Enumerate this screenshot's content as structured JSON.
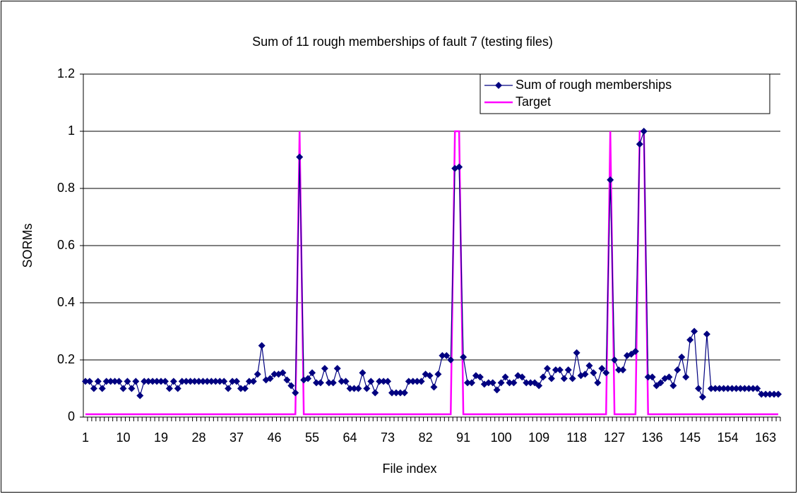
{
  "chart_data": {
    "type": "line",
    "title": "Sum of 11 rough memberships of fault 7 (testing files)",
    "xlabel": "File index",
    "ylabel": "SORMs",
    "categories": [
      1,
      null,
      null,
      null,
      null,
      null,
      null,
      null,
      null,
      10,
      null,
      null,
      null,
      null,
      null,
      null,
      null,
      null,
      19,
      null,
      null,
      null,
      null,
      null,
      null,
      null,
      null,
      28,
      null,
      null,
      null,
      null,
      null,
      null,
      null,
      null,
      37,
      null,
      null,
      null,
      null,
      null,
      null,
      null,
      null,
      46,
      null,
      null,
      null,
      null,
      null,
      null,
      null,
      null,
      55,
      null,
      null,
      null,
      null,
      null,
      null,
      null,
      null,
      64,
      null,
      null,
      null,
      null,
      null,
      null,
      null,
      null,
      73,
      null,
      null,
      null,
      null,
      null,
      null,
      null,
      null,
      82,
      null,
      null,
      null,
      null,
      null,
      null,
      null,
      null,
      91,
      null,
      null,
      null,
      null,
      null,
      null,
      null,
      null,
      100,
      null,
      null,
      null,
      null,
      null,
      null,
      null,
      null,
      109,
      null,
      null,
      null,
      null,
      null,
      null,
      null,
      null,
      118,
      null,
      null,
      null,
      null,
      null,
      null,
      null,
      null,
      127,
      null,
      null,
      null,
      null,
      null,
      null,
      null,
      null,
      136,
      null,
      null,
      null,
      null,
      null,
      null,
      null,
      null,
      145,
      null,
      null,
      null,
      null,
      null,
      null,
      null,
      null,
      154,
      null,
      null,
      null,
      null,
      null,
      null,
      null,
      null,
      163,
      null,
      null,
      null
    ],
    "series": [
      {
        "name": "Sum of rough memberships",
        "color": "#000080",
        "marker": "diamond",
        "values": [
          0.125,
          0.125,
          0.1,
          0.125,
          0.1,
          0.125,
          0.125,
          0.125,
          0.125,
          0.1,
          0.125,
          0.1,
          0.125,
          0.075,
          0.125,
          0.125,
          0.125,
          0.125,
          0.125,
          0.125,
          0.1,
          0.125,
          0.1,
          0.125,
          0.125,
          0.125,
          0.125,
          0.125,
          0.125,
          0.125,
          0.125,
          0.125,
          0.125,
          0.125,
          0.1,
          0.125,
          0.125,
          0.1,
          0.1,
          0.125,
          0.125,
          0.15,
          0.25,
          0.13,
          0.135,
          0.15,
          0.15,
          0.155,
          0.13,
          0.11,
          0.085,
          0.91,
          0.13,
          0.135,
          0.155,
          0.12,
          0.12,
          0.17,
          0.12,
          0.12,
          0.17,
          0.125,
          0.125,
          0.1,
          0.1,
          0.1,
          0.155,
          0.1,
          0.125,
          0.085,
          0.125,
          0.125,
          0.125,
          0.085,
          0.085,
          0.085,
          0.085,
          0.125,
          0.125,
          0.125,
          0.125,
          0.15,
          0.145,
          0.105,
          0.15,
          0.215,
          0.215,
          0.2,
          0.87,
          0.875,
          0.21,
          0.12,
          0.12,
          0.145,
          0.14,
          0.115,
          0.12,
          0.12,
          0.095,
          0.12,
          0.14,
          0.12,
          0.12,
          0.145,
          0.14,
          0.12,
          0.12,
          0.12,
          0.11,
          0.14,
          0.17,
          0.135,
          0.165,
          0.165,
          0.135,
          0.165,
          0.135,
          0.225,
          0.145,
          0.15,
          0.18,
          0.155,
          0.12,
          0.17,
          0.155,
          0.83,
          0.2,
          0.165,
          0.165,
          0.215,
          0.22,
          0.23,
          0.955,
          1.0,
          0.14,
          0.14,
          0.11,
          0.12,
          0.135,
          0.14,
          0.11,
          0.165,
          0.21,
          0.14,
          0.27,
          0.3,
          0.1,
          0.07,
          0.29,
          0.1,
          0.1,
          0.1,
          0.1,
          0.1,
          0.1,
          0.1,
          0.1,
          0.1,
          0.1,
          0.1,
          0.1,
          0.08,
          0.08,
          0.08,
          0.08,
          0.08
        ]
      },
      {
        "name": "Target",
        "color": "#ff00ff",
        "values": [
          0.01,
          0.01,
          0.01,
          0.01,
          0.01,
          0.01,
          0.01,
          0.01,
          0.01,
          0.01,
          0.01,
          0.01,
          0.01,
          0.01,
          0.01,
          0.01,
          0.01,
          0.01,
          0.01,
          0.01,
          0.01,
          0.01,
          0.01,
          0.01,
          0.01,
          0.01,
          0.01,
          0.01,
          0.01,
          0.01,
          0.01,
          0.01,
          0.01,
          0.01,
          0.01,
          0.01,
          0.01,
          0.01,
          0.01,
          0.01,
          0.01,
          0.01,
          0.01,
          0.01,
          0.01,
          0.01,
          0.01,
          0.01,
          0.01,
          0.01,
          0.01,
          1,
          0.01,
          0.01,
          0.01,
          0.01,
          0.01,
          0.01,
          0.01,
          0.01,
          0.01,
          0.01,
          0.01,
          0.01,
          0.01,
          0.01,
          0.01,
          0.01,
          0.01,
          0.01,
          0.01,
          0.01,
          0.01,
          0.01,
          0.01,
          0.01,
          0.01,
          0.01,
          0.01,
          0.01,
          0.01,
          0.01,
          0.01,
          0.01,
          0.01,
          0.01,
          0.01,
          0.01,
          1,
          1,
          0.01,
          0.01,
          0.01,
          0.01,
          0.01,
          0.01,
          0.01,
          0.01,
          0.01,
          0.01,
          0.01,
          0.01,
          0.01,
          0.01,
          0.01,
          0.01,
          0.01,
          0.01,
          0.01,
          0.01,
          0.01,
          0.01,
          0.01,
          0.01,
          0.01,
          0.01,
          0.01,
          0.01,
          0.01,
          0.01,
          0.01,
          0.01,
          0.01,
          0.01,
          0.01,
          1,
          0.01,
          0.01,
          0.01,
          0.01,
          0.01,
          0.01,
          1,
          1,
          0.01,
          0.01,
          0.01,
          0.01,
          0.01,
          0.01,
          0.01,
          0.01,
          0.01,
          0.01,
          0.01,
          0.01,
          0.01,
          0.01,
          0.01,
          0.01,
          0.01,
          0.01,
          0.01,
          0.01,
          0.01,
          0.01,
          0.01,
          0.01,
          0.01,
          0.01,
          0.01,
          0.01,
          0.01,
          0.01,
          0.01,
          0.01
        ]
      }
    ],
    "ylim": [
      0,
      1.2
    ],
    "yticks": [
      0,
      0.2,
      0.4,
      0.6,
      0.8,
      1,
      1.2
    ],
    "grid": true,
    "legend": "upper right"
  }
}
